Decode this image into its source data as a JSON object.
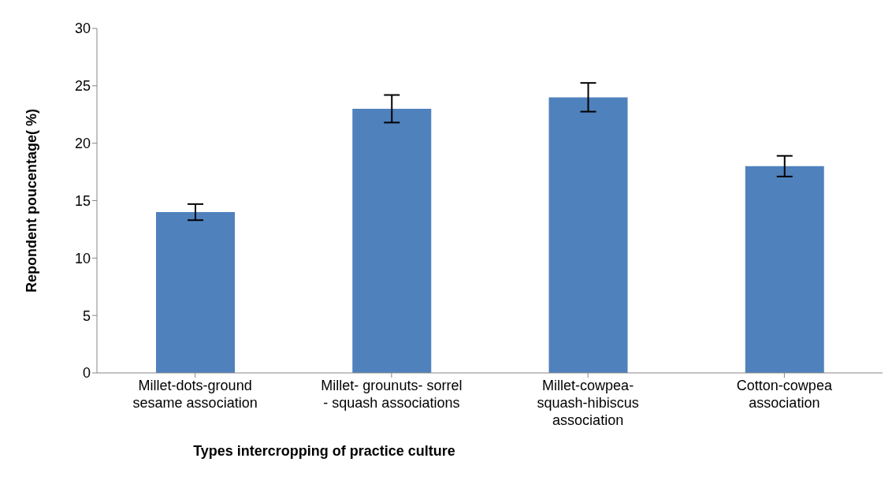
{
  "chart_data": {
    "type": "bar",
    "categories": [
      "Millet-dots-ground sesame association",
      "Millet- grounuts- sorrel - squash associations",
      "Millet-cowpea- squash-hibiscus association",
      "Cotton-cowpea association"
    ],
    "values": [
      14,
      23,
      24,
      18
    ],
    "errors": [
      0.7,
      1.2,
      1.25,
      0.9
    ],
    "color": "#4f81bd",
    "xlabel": "Types intercropping of practice culture",
    "ylabel": "Repondent poucentage( %)",
    "ylim": [
      0,
      30
    ],
    "yticks": [
      0,
      5,
      10,
      15,
      20,
      25,
      30
    ],
    "grid": false,
    "legend": false
  }
}
